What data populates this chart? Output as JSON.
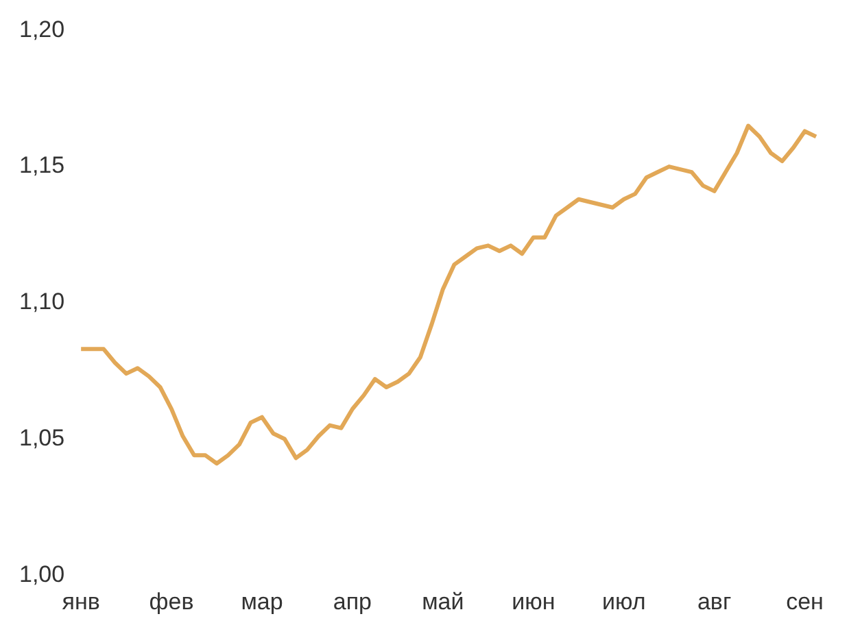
{
  "chart_data": {
    "type": "line",
    "grid": false,
    "legend": false,
    "marker": "none",
    "line_style": "solid",
    "categories": [
      "янв",
      null,
      null,
      null,
      null,
      null,
      null,
      null,
      "фев",
      null,
      null,
      null,
      null,
      null,
      null,
      null,
      "мар",
      null,
      null,
      null,
      null,
      null,
      null,
      null,
      "апр",
      null,
      null,
      null,
      null,
      null,
      null,
      null,
      "май",
      null,
      null,
      null,
      null,
      null,
      null,
      null,
      "июн",
      null,
      null,
      null,
      null,
      null,
      null,
      null,
      "июл",
      null,
      null,
      null,
      null,
      null,
      null,
      null,
      "авг",
      null,
      null,
      null,
      null,
      null,
      null,
      null,
      "сен",
      null
    ],
    "series": [
      {
        "color": "#e2a857",
        "values": [
          1.083,
          1.083,
          1.083,
          1.078,
          1.074,
          1.076,
          1.073,
          1.069,
          1.061,
          1.051,
          1.044,
          1.044,
          1.041,
          1.044,
          1.048,
          1.056,
          1.058,
          1.052,
          1.05,
          1.043,
          1.046,
          1.051,
          1.055,
          1.054,
          1.061,
          1.066,
          1.072,
          1.069,
          1.071,
          1.074,
          1.08,
          1.092,
          1.105,
          1.114,
          1.117,
          1.12,
          1.121,
          1.119,
          1.121,
          1.118,
          1.124,
          1.124,
          1.132,
          1.135,
          1.138,
          1.137,
          1.136,
          1.135,
          1.138,
          1.14,
          1.146,
          1.148,
          1.15,
          1.149,
          1.148,
          1.143,
          1.141,
          1.148,
          1.155,
          1.165,
          1.161,
          1.155,
          1.152,
          1.157,
          1.163,
          1.161
        ]
      }
    ],
    "ylim": [
      1.0,
      1.2
    ],
    "yticks": [
      {
        "value": 1.0,
        "label": "1,00"
      },
      {
        "value": 1.05,
        "label": "1,05"
      },
      {
        "value": 1.1,
        "label": "1,10"
      },
      {
        "value": 1.15,
        "label": "1,15"
      },
      {
        "value": 1.2,
        "label": "1,20"
      }
    ]
  }
}
